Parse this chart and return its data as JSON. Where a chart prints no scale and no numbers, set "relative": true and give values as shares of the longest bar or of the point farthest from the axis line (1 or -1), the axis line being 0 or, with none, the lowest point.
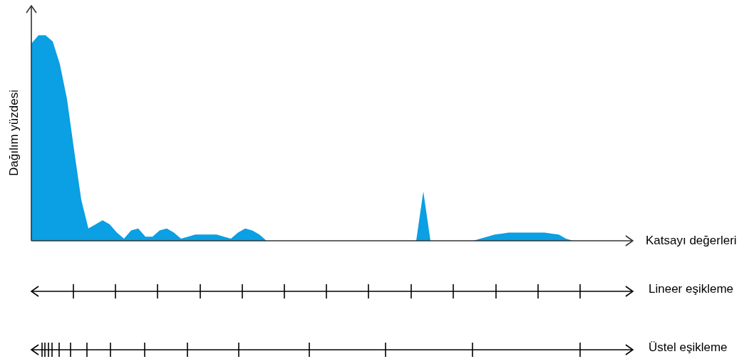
{
  "chart_data": {
    "type": "area",
    "xlabel": "Katsayı değerleri",
    "ylabel": "Dağılım yüzdesi",
    "annotations": [
      "Lineer eşikleme",
      "Üstel eşikleme"
    ],
    "relative": true,
    "color": "#0b9fe3",
    "categories": [
      null,
      null,
      null,
      null,
      null,
      null,
      null,
      null,
      null,
      null,
      null,
      null,
      null,
      null,
      null,
      null,
      null,
      null,
      null,
      null,
      null,
      null,
      null,
      null,
      null,
      null,
      null,
      null,
      null,
      null,
      null,
      null,
      null,
      null,
      null,
      null,
      null,
      null,
      null,
      null,
      null,
      null,
      null,
      null,
      null,
      null,
      null,
      null,
      null,
      null,
      null,
      null,
      null,
      null,
      null,
      null,
      null,
      null,
      null,
      null,
      null,
      null,
      null,
      null,
      null,
      null,
      null,
      null,
      null,
      null,
      null,
      null,
      null,
      null,
      null,
      null,
      null,
      null,
      null,
      null,
      null,
      null,
      null,
      null
    ],
    "values": [
      0.96,
      1.0,
      1.0,
      0.97,
      0.86,
      0.69,
      0.44,
      0.2,
      0.06,
      0.08,
      0.1,
      0.08,
      0.04,
      0.01,
      0.05,
      0.06,
      0.02,
      0.02,
      0.05,
      0.06,
      0.04,
      0.01,
      0.02,
      0.03,
      0.03,
      0.03,
      0.03,
      0.02,
      0.01,
      0.04,
      0.06,
      0.05,
      0.03,
      0,
      0,
      0,
      0,
      0,
      0,
      0,
      0,
      0,
      0,
      0,
      0,
      0,
      0,
      0,
      0,
      0,
      0,
      0,
      0,
      0,
      0,
      0.24,
      0,
      0,
      0,
      0,
      0,
      0,
      0,
      0.01,
      0.02,
      0.03,
      0.035,
      0.04,
      0.04,
      0.04,
      0.04,
      0.04,
      0.04,
      0.035,
      0.03,
      0.01,
      0,
      0,
      0,
      0,
      0,
      0,
      0,
      0
    ]
  }
}
